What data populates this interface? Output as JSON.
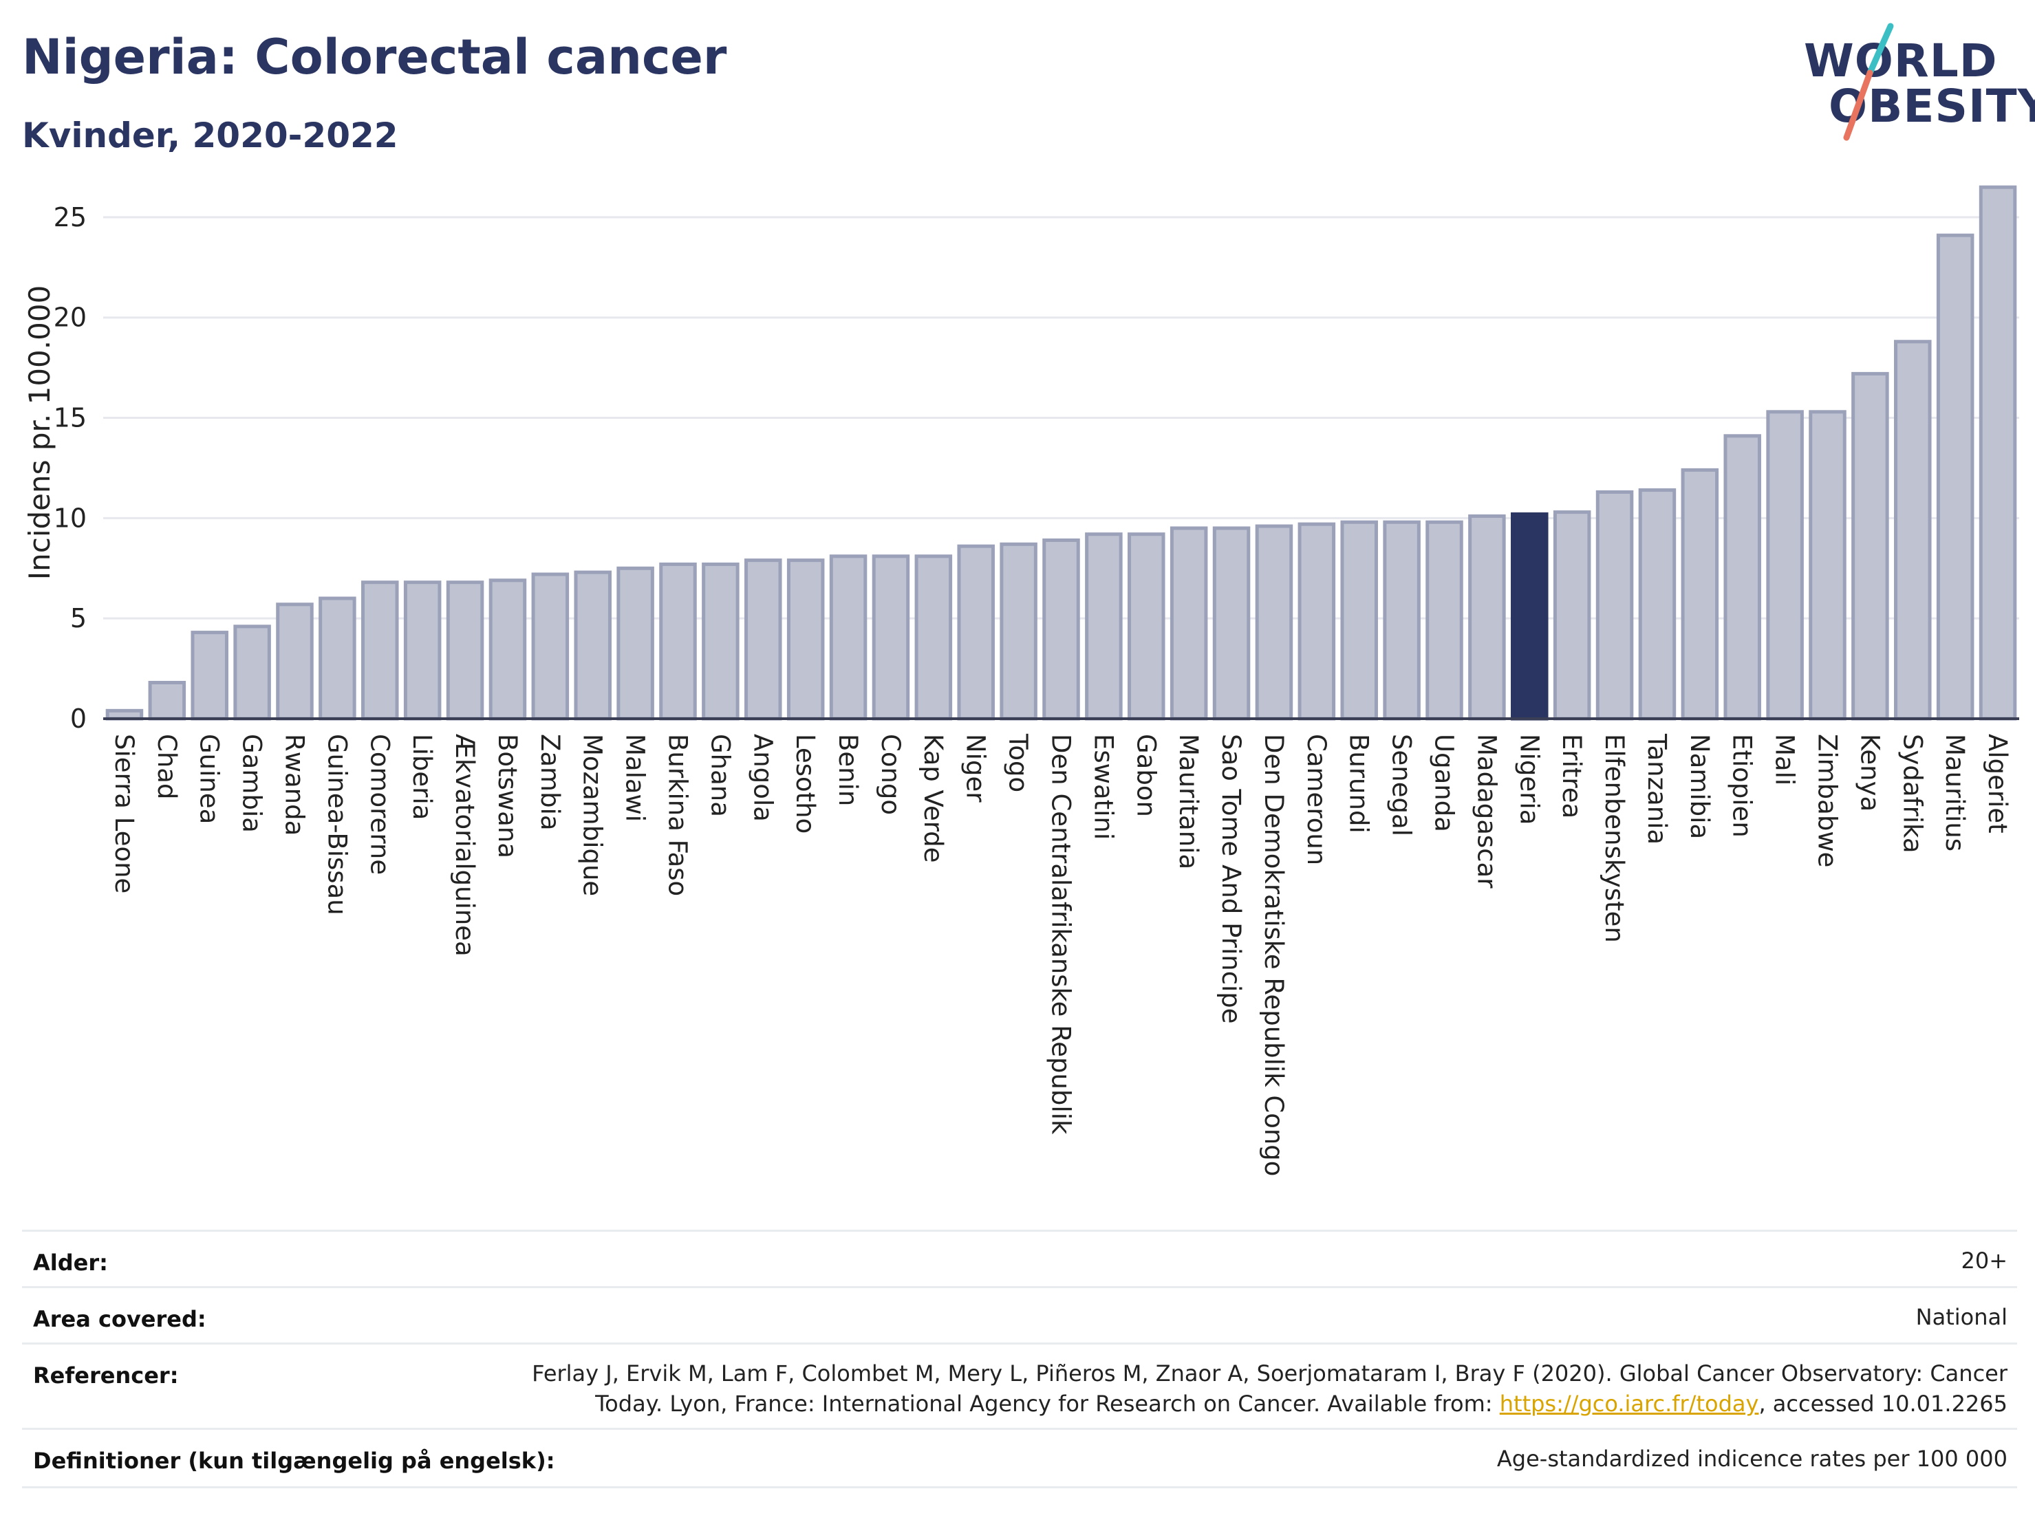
{
  "header": {
    "title": "Nigeria: Colorectal cancer",
    "subtitle": "Kvinder, 2020-2022",
    "logo_line1": "WORLD",
    "logo_line2": "OBESITY"
  },
  "colors": {
    "bar": "#bec2d1",
    "bar_stroke": "#9ba1b8",
    "highlight": "#2b3561",
    "title": "#2b3561",
    "logo_teal": "#3bbfc4",
    "logo_coral": "#e8735e"
  },
  "chart_data": {
    "type": "bar",
    "title": "Nigeria: Colorectal cancer",
    "subtitle": "Kvinder, 2020-2022",
    "ylabel": "Incidens pr. 100.000",
    "ylim": [
      0,
      27.5
    ],
    "yticks": [
      0,
      5,
      10,
      15,
      20,
      25
    ],
    "grid": true,
    "highlight": "Nigeria",
    "categories": [
      "Sierra Leone",
      "Chad",
      "Guinea",
      "Gambia",
      "Rwanda",
      "Guinea-Bissau",
      "Comorerne",
      "Liberia",
      "Ækvatorialguinea",
      "Botswana",
      "Zambia",
      "Mozambique",
      "Malawi",
      "Burkina Faso",
      "Ghana",
      "Angola",
      "Lesotho",
      "Benin",
      "Congo",
      "Kap Verde",
      "Niger",
      "Togo",
      "Den Centralafrikanske Republik",
      "Eswatini",
      "Gabon",
      "Mauritania",
      "Sao Tome And Principe",
      "Den Demokratiske Republik Congo",
      "Cameroun",
      "Burundi",
      "Senegal",
      "Uganda",
      "Madagascar",
      "Nigeria",
      "Eritrea",
      "Elfenbenskysten",
      "Tanzania",
      "Namibia",
      "Etiopien",
      "Mali",
      "Zimbabwe",
      "Kenya",
      "Sydafrika",
      "Mauritius",
      "Algeriet"
    ],
    "values": [
      0.4,
      1.8,
      4.3,
      4.6,
      5.7,
      6.0,
      6.8,
      6.8,
      6.8,
      6.9,
      7.2,
      7.3,
      7.5,
      7.7,
      7.7,
      7.9,
      7.9,
      8.1,
      8.1,
      8.1,
      8.6,
      8.7,
      8.9,
      9.2,
      9.2,
      9.5,
      9.5,
      9.6,
      9.7,
      9.8,
      9.8,
      9.8,
      10.1,
      10.2,
      10.3,
      11.3,
      11.4,
      12.4,
      14.1,
      15.3,
      15.3,
      17.2,
      18.8,
      24.1,
      26.5
    ]
  },
  "meta": {
    "age_label": "Alder:",
    "age_value": "20+",
    "area_label": "Area covered:",
    "area_value": "National",
    "ref_label": "Referencer:",
    "ref_line1": "Ferlay J, Ervik M, Lam F, Colombet M, Mery L, Piñeros M, Znaor A, Soerjomataram I, Bray F (2020). Global Cancer Observatory: Cancer",
    "ref_line2_pre": "Today. Lyon, France: International Agency for Research on Cancer. Available from: ",
    "ref_link": "https://gco.iarc.fr/today",
    "ref_line2_post": ", accessed 10.01.2265",
    "def_label": "Definitioner (kun tilgængelig på engelsk):",
    "def_value": "Age-standardized indicence rates per 100 000"
  }
}
